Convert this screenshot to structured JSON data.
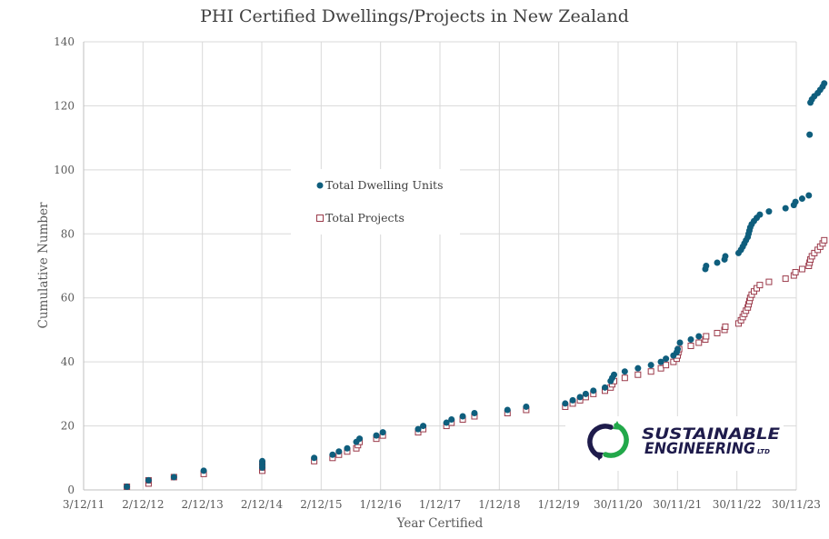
{
  "chart_data": {
    "type": "scatter",
    "title": "PHI Certified Dwellings/Projects in New Zealand",
    "xlabel": "Year Certified",
    "ylabel": "Cumulative Number",
    "xlim": [
      "2011-12-03",
      "2023-11-30"
    ],
    "ylim": [
      0,
      140
    ],
    "x_ticks": [
      "2011-12-03",
      "2012-12-02",
      "2013-12-02",
      "2014-12-02",
      "2015-12-02",
      "2016-12-01",
      "2017-12-01",
      "2018-12-01",
      "2019-12-01",
      "2020-11-30",
      "2021-11-30",
      "2022-11-30",
      "2023-11-30"
    ],
    "x_tick_labels": [
      "3/12/11",
      "2/12/12",
      "2/12/13",
      "2/12/14",
      "2/12/15",
      "1/12/16",
      "1/12/17",
      "1/12/18",
      "1/12/19",
      "30/11/20",
      "30/11/21",
      "30/11/22",
      "30/11/23"
    ],
    "y_ticks": [
      0,
      20,
      40,
      60,
      80,
      100,
      120,
      140
    ],
    "y_tick_labels": [
      "0",
      "20",
      "40",
      "60",
      "80",
      "100",
      "120",
      "140"
    ],
    "grid": true,
    "legend_position": "upper-left (inside plot)",
    "series": [
      {
        "name": "Total Dwelling Units",
        "marker": "filled-circle",
        "color": "#0f5e7d",
        "points": [
          [
            "2012-08-25",
            1
          ],
          [
            "2013-01-05",
            3
          ],
          [
            "2013-06-10",
            4
          ],
          [
            "2013-12-10",
            6
          ],
          [
            "2014-12-05",
            9
          ],
          [
            "2014-12-05",
            8
          ],
          [
            "2014-12-05",
            7
          ],
          [
            "2015-10-20",
            10
          ],
          [
            "2016-02-10",
            11
          ],
          [
            "2016-03-20",
            12
          ],
          [
            "2016-05-10",
            13
          ],
          [
            "2016-07-05",
            15
          ],
          [
            "2016-07-25",
            16
          ],
          [
            "2016-11-05",
            17
          ],
          [
            "2016-12-15",
            18
          ],
          [
            "2017-07-20",
            19
          ],
          [
            "2017-08-20",
            20
          ],
          [
            "2018-01-10",
            21
          ],
          [
            "2018-02-10",
            22
          ],
          [
            "2018-04-20",
            23
          ],
          [
            "2018-07-01",
            24
          ],
          [
            "2019-01-20",
            25
          ],
          [
            "2019-05-15",
            26
          ],
          [
            "2020-01-10",
            27
          ],
          [
            "2020-02-25",
            28
          ],
          [
            "2020-04-10",
            29
          ],
          [
            "2020-05-15",
            30
          ],
          [
            "2020-07-01",
            31
          ],
          [
            "2020-09-10",
            32
          ],
          [
            "2020-10-15",
            34
          ],
          [
            "2020-10-25",
            35
          ],
          [
            "2020-11-05",
            36
          ],
          [
            "2021-01-10",
            37
          ],
          [
            "2021-04-01",
            38
          ],
          [
            "2021-06-20",
            39
          ],
          [
            "2021-08-20",
            40
          ],
          [
            "2021-09-20",
            41
          ],
          [
            "2021-11-05",
            42
          ],
          [
            "2021-11-25",
            43
          ],
          [
            "2021-12-01",
            44
          ],
          [
            "2021-12-15",
            46
          ],
          [
            "2022-02-20",
            47
          ],
          [
            "2022-04-10",
            48
          ],
          [
            "2022-05-20",
            69
          ],
          [
            "2022-05-25",
            70
          ],
          [
            "2022-08-01",
            71
          ],
          [
            "2022-09-15",
            72
          ],
          [
            "2022-09-20",
            73
          ],
          [
            "2022-12-10",
            74
          ],
          [
            "2022-12-25",
            75
          ],
          [
            "2023-01-05",
            76
          ],
          [
            "2023-01-15",
            77
          ],
          [
            "2023-01-25",
            78
          ],
          [
            "2023-02-05",
            79
          ],
          [
            "2023-02-10",
            80
          ],
          [
            "2023-02-15",
            81
          ],
          [
            "2023-02-20",
            82
          ],
          [
            "2023-03-01",
            83
          ],
          [
            "2023-03-15",
            84
          ],
          [
            "2023-04-01",
            85
          ],
          [
            "2023-04-20",
            86
          ],
          [
            "2023-06-15",
            87
          ],
          [
            "2023-09-25",
            88
          ],
          [
            "2023-11-15",
            89
          ],
          [
            "2023-11-25",
            90
          ],
          [
            "2024-01-05",
            91
          ],
          [
            "2024-02-15",
            92
          ],
          [
            "2024-02-20",
            111
          ],
          [
            "2024-02-25",
            121
          ],
          [
            "2024-03-05",
            122
          ],
          [
            "2024-03-20",
            123
          ],
          [
            "2024-04-10",
            124
          ],
          [
            "2024-04-25",
            125
          ],
          [
            "2024-05-10",
            126
          ],
          [
            "2024-05-20",
            127
          ]
        ]
      },
      {
        "name": "Total Projects",
        "marker": "hollow-square",
        "color": "#9b3a4a",
        "points": [
          [
            "2012-08-25",
            1
          ],
          [
            "2013-01-05",
            2
          ],
          [
            "2013-01-05",
            3
          ],
          [
            "2013-06-10",
            4
          ],
          [
            "2013-12-10",
            5
          ],
          [
            "2014-12-05",
            6
          ],
          [
            "2014-12-05",
            7
          ],
          [
            "2014-12-05",
            8
          ],
          [
            "2015-10-20",
            9
          ],
          [
            "2016-02-10",
            10
          ],
          [
            "2016-03-20",
            11
          ],
          [
            "2016-05-10",
            12
          ],
          [
            "2016-07-05",
            13
          ],
          [
            "2016-07-15",
            14
          ],
          [
            "2016-07-25",
            15
          ],
          [
            "2016-11-05",
            16
          ],
          [
            "2016-12-15",
            17
          ],
          [
            "2017-07-20",
            18
          ],
          [
            "2017-08-20",
            19
          ],
          [
            "2018-01-10",
            20
          ],
          [
            "2018-02-10",
            21
          ],
          [
            "2018-04-20",
            22
          ],
          [
            "2018-07-01",
            23
          ],
          [
            "2019-01-20",
            24
          ],
          [
            "2019-05-15",
            25
          ],
          [
            "2020-01-10",
            26
          ],
          [
            "2020-02-25",
            27
          ],
          [
            "2020-04-10",
            28
          ],
          [
            "2020-05-15",
            29
          ],
          [
            "2020-07-01",
            30
          ],
          [
            "2020-09-10",
            31
          ],
          [
            "2020-10-15",
            32
          ],
          [
            "2020-10-25",
            33
          ],
          [
            "2020-11-05",
            34
          ],
          [
            "2021-01-10",
            35
          ],
          [
            "2021-04-01",
            36
          ],
          [
            "2021-06-20",
            37
          ],
          [
            "2021-08-20",
            38
          ],
          [
            "2021-09-20",
            39
          ],
          [
            "2021-11-05",
            40
          ],
          [
            "2021-11-25",
            41
          ],
          [
            "2021-12-01",
            42
          ],
          [
            "2021-12-05",
            43
          ],
          [
            "2021-12-10",
            44
          ],
          [
            "2022-02-20",
            45
          ],
          [
            "2022-04-10",
            46
          ],
          [
            "2022-05-20",
            47
          ],
          [
            "2022-05-25",
            48
          ],
          [
            "2022-08-01",
            49
          ],
          [
            "2022-09-15",
            50
          ],
          [
            "2022-09-20",
            51
          ],
          [
            "2022-12-10",
            52
          ],
          [
            "2022-12-25",
            53
          ],
          [
            "2023-01-05",
            54
          ],
          [
            "2023-01-15",
            55
          ],
          [
            "2023-01-25",
            56
          ],
          [
            "2023-02-05",
            57
          ],
          [
            "2023-02-10",
            58
          ],
          [
            "2023-02-15",
            59
          ],
          [
            "2023-02-20",
            60
          ],
          [
            "2023-03-01",
            61
          ],
          [
            "2023-03-15",
            62
          ],
          [
            "2023-04-01",
            63
          ],
          [
            "2023-04-20",
            64
          ],
          [
            "2023-06-15",
            65
          ],
          [
            "2023-09-25",
            66
          ],
          [
            "2023-11-15",
            67
          ],
          [
            "2023-11-25",
            68
          ],
          [
            "2024-01-05",
            69
          ],
          [
            "2024-02-15",
            70
          ],
          [
            "2024-02-20",
            71
          ],
          [
            "2024-02-25",
            72
          ],
          [
            "2024-03-05",
            73
          ],
          [
            "2024-03-20",
            74
          ],
          [
            "2024-04-10",
            75
          ],
          [
            "2024-04-25",
            76
          ],
          [
            "2024-05-10",
            77
          ],
          [
            "2024-05-20",
            78
          ]
        ]
      }
    ]
  },
  "logo": {
    "line1": "SUSTAINABLE",
    "line2": "ENGINEERING",
    "suffix": "LTD",
    "colors": {
      "navy": "#1e1b4b",
      "green": "#22a84a"
    }
  }
}
